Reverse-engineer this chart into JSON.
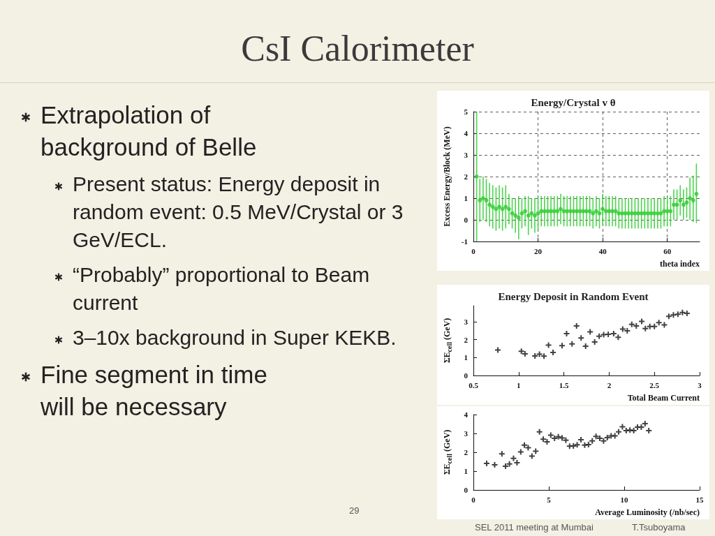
{
  "chart_data": [
    {
      "type": "other",
      "title": "CsI Calorimeter",
      "annotations": [
        "Extrapolation of background of Belle",
        "Present status: Energy deposit in random event: 0.5 MeV/Crystal or 3 GeV/ECL.",
        "“Probably” proportional to Beam current",
        "3–10x background in Super KEKB.",
        "Fine segment in time will be necessary",
        "29",
        "SEL 2011 meeting at Mumbai",
        "T.Tsuboyama"
      ]
    },
    {
      "type": "scatter",
      "title": "Energy/Crystal v θ",
      "xlabel": "theta index",
      "ylabel": "Excess Energy/Block (MeV)",
      "xlim": [
        0,
        70
      ],
      "xticks": [
        0,
        20,
        40,
        60
      ],
      "ylim": [
        -1,
        5
      ],
      "yticks": [
        -1,
        0,
        1,
        2,
        3,
        4,
        5
      ],
      "grid": true,
      "marker": "circle",
      "series": [
        {
          "color": "#2ecc2e",
          "x": [
            1,
            2,
            3,
            4,
            5,
            6,
            7,
            8,
            9,
            10,
            11,
            12,
            13,
            14,
            15,
            16,
            17,
            18,
            19,
            20,
            21,
            22,
            23,
            24,
            25,
            26,
            27,
            28,
            29,
            30,
            31,
            32,
            33,
            34,
            35,
            36,
            37,
            38,
            39,
            40,
            41,
            42,
            43,
            44,
            45,
            46,
            47,
            48,
            49,
            50,
            51,
            52,
            53,
            54,
            55,
            56,
            57,
            58,
            59,
            60,
            61,
            62,
            63,
            64,
            65,
            66,
            67,
            68,
            69
          ],
          "values": [
            2,
            0.9,
            1.0,
            0.9,
            0.7,
            0.6,
            0.5,
            0.6,
            0.5,
            0.6,
            0.5,
            0.3,
            0.2,
            0.1,
            0.3,
            0.4,
            0.2,
            0.3,
            0.2,
            0.3,
            0.4,
            0.4,
            0.4,
            0.4,
            0.4,
            0.4,
            0.5,
            0.4,
            0.4,
            0.4,
            0.4,
            0.4,
            0.4,
            0.4,
            0.4,
            0.4,
            0.3,
            0.4,
            0.3,
            0.5,
            0.4,
            0.4,
            0.4,
            0.4,
            0.3,
            0.3,
            0.3,
            0.3,
            0.3,
            0.3,
            0.3,
            0.3,
            0.3,
            0.3,
            0.3,
            0.3,
            0.3,
            0.3,
            0.4,
            0.4,
            0.4,
            0.7,
            0.7,
            0.9,
            0.7,
            0.8,
            1.0,
            0.9,
            1.2
          ],
          "errors": [
            [
              -1,
              5
            ],
            1,
            1,
            1,
            1,
            1,
            1,
            1,
            1,
            1,
            0.7,
            0.7,
            0.8,
            1,
            0.7,
            0.7,
            0.9,
            0.7,
            0.8,
            0.8,
            0.7,
            0.7,
            0.7,
            0.7,
            0.7,
            0.7,
            0.7,
            0.7,
            0.7,
            0.7,
            0.7,
            0.7,
            0.7,
            0.7,
            0.7,
            0.7,
            0.7,
            0.7,
            0.7,
            0.7,
            0.7,
            0.7,
            0.7,
            0.7,
            0.7,
            0.7,
            0.7,
            0.7,
            0.7,
            0.7,
            0.7,
            0.7,
            0.7,
            0.7,
            0.7,
            0.7,
            0.7,
            0.7,
            0.7,
            0.7,
            0.7,
            0.7,
            0.7,
            0.7,
            0.7,
            0.7,
            [
              0,
              1.95
            ],
            [
              -0.1,
              2.05
            ],
            [
              -0.15,
              2.6
            ]
          ]
        }
      ]
    },
    {
      "type": "scatter",
      "title": "Energy Deposit in Random Event",
      "xlabel": "Total Beam Current",
      "ylabel": "ΣE$_{cell}$ (GeV)",
      "xlim": [
        0.5,
        3
      ],
      "xticks": [
        0.5,
        1,
        1.5,
        2,
        2.5,
        3
      ],
      "ylim": [
        0,
        3.9
      ],
      "yticks": [
        0,
        1,
        2,
        3
      ],
      "grid": false,
      "marker": "cross",
      "series": [
        {
          "color": "#111111",
          "x": [
            0.77,
            1.03,
            1.07,
            1.18,
            1.23,
            1.28,
            1.33,
            1.38,
            1.48,
            1.53,
            1.59,
            1.64,
            1.69,
            1.74,
            1.79,
            1.84,
            1.89,
            1.94,
            1.99,
            2.05,
            2.1,
            2.15,
            2.2,
            2.25,
            2.3,
            2.36,
            2.4,
            2.45,
            2.5,
            2.55,
            2.61,
            2.66,
            2.71,
            2.76,
            2.81,
            2.86
          ],
          "values": [
            1.42,
            1.36,
            1.21,
            1.09,
            1.19,
            1.08,
            1.7,
            1.29,
            1.67,
            2.34,
            1.76,
            2.77,
            2.1,
            1.64,
            2.44,
            1.87,
            2.19,
            2.28,
            2.3,
            2.34,
            2.14,
            2.59,
            2.5,
            2.86,
            2.77,
            3.02,
            2.62,
            2.74,
            2.74,
            2.95,
            2.83,
            3.31,
            3.38,
            3.42,
            3.52,
            3.47
          ]
        }
      ]
    },
    {
      "type": "scatter",
      "xlabel": "Average Luminosity (/nb/sec)",
      "ylabel": "ΣE$_{cell}$ (GeV)",
      "xlim": [
        0,
        15
      ],
      "xticks": [
        0,
        5,
        10,
        15
      ],
      "ylim": [
        0,
        4
      ],
      "yticks": [
        0,
        1,
        2,
        3,
        4
      ],
      "grid": false,
      "marker": "cross",
      "series": [
        {
          "color": "#111111",
          "x": [
            0.88,
            1.41,
            1.89,
            2.13,
            2.39,
            2.66,
            2.89,
            3.14,
            3.38,
            3.63,
            3.88,
            4.13,
            4.38,
            4.63,
            4.88,
            5.13,
            5.38,
            5.63,
            5.88,
            6.13,
            6.38,
            6.63,
            6.88,
            7.13,
            7.38,
            7.63,
            7.88,
            8.13,
            8.38,
            8.63,
            8.88,
            9.13,
            9.38,
            9.63,
            9.88,
            10.13,
            10.38,
            10.63,
            10.88,
            11.13,
            11.38,
            11.63
          ],
          "values": [
            1.41,
            1.33,
            1.92,
            1.26,
            1.38,
            1.68,
            1.44,
            2.02,
            2.38,
            2.24,
            1.8,
            2.06,
            3.08,
            2.69,
            2.56,
            2.91,
            2.74,
            2.82,
            2.76,
            2.64,
            2.32,
            2.33,
            2.4,
            2.67,
            2.38,
            2.41,
            2.6,
            2.84,
            2.74,
            2.6,
            2.78,
            2.87,
            2.87,
            3.08,
            3.35,
            3.15,
            3.18,
            3.15,
            3.33,
            3.33,
            3.52,
            3.15
          ]
        }
      ]
    }
  ]
}
